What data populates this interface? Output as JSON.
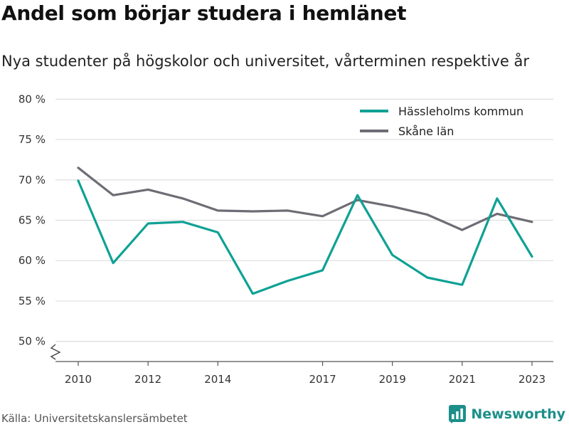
{
  "title": "Andel som börjar studera i hemlänet",
  "subtitle": "Nya studenter på högskolor och universitet, vårterminen respektive år",
  "source": "Källa: Universitetskanslersämbetet",
  "brand": {
    "name": "Newsworthy",
    "icon": "bar-chart-logo-icon",
    "color": "#1d8f89"
  },
  "chart_data": {
    "type": "line",
    "x": [
      2010,
      2011,
      2012,
      2013,
      2014,
      2015,
      2016,
      2017,
      2018,
      2019,
      2020,
      2021,
      2022,
      2023
    ],
    "x_tick_labels": [
      "2010",
      "2012",
      "2014",
      "2017",
      "2019",
      "2021",
      "2023"
    ],
    "y_tick_labels": [
      "80 %",
      "75 %",
      "70 %",
      "65 %",
      "60 %",
      "55 %",
      "50 %"
    ],
    "y_ticks": [
      80,
      75,
      70,
      65,
      60,
      55,
      50
    ],
    "ylim": [
      47.5,
      81
    ],
    "y_axis_break": true,
    "grid": true,
    "legend_position": "top-right",
    "series": [
      {
        "name": "Hässleholms kommun",
        "color": "#0fa195",
        "values": [
          69.9,
          59.7,
          64.6,
          64.8,
          63.5,
          55.9,
          57.5,
          58.8,
          68.1,
          60.7,
          57.9,
          57.0,
          67.7,
          60.5
        ]
      },
      {
        "name": "Skåne län",
        "color": "#6e6c74",
        "values": [
          71.5,
          68.1,
          68.8,
          67.7,
          66.2,
          66.1,
          66.2,
          65.5,
          67.5,
          66.7,
          65.7,
          63.8,
          65.8,
          64.8
        ]
      }
    ]
  }
}
